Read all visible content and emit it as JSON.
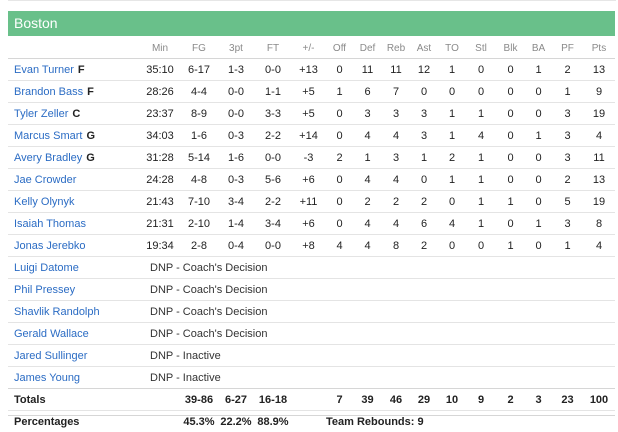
{
  "team_name": "Boston",
  "columns": [
    "Min",
    "FG",
    "3pt",
    "FT",
    "+/-",
    "Off",
    "Def",
    "Reb",
    "Ast",
    "TO",
    "Stl",
    "Blk",
    "BA",
    "PF",
    "Pts"
  ],
  "players": [
    {
      "name": "Evan Turner",
      "pos": "F",
      "stats": [
        "35:10",
        "6-17",
        "1-3",
        "0-0",
        "+13",
        "0",
        "11",
        "11",
        "12",
        "1",
        "0",
        "0",
        "1",
        "2",
        "13"
      ]
    },
    {
      "name": "Brandon Bass",
      "pos": "F",
      "stats": [
        "28:26",
        "4-4",
        "0-0",
        "1-1",
        "+5",
        "1",
        "6",
        "7",
        "0",
        "0",
        "0",
        "0",
        "0",
        "1",
        "9"
      ]
    },
    {
      "name": "Tyler Zeller",
      "pos": "C",
      "stats": [
        "23:37",
        "8-9",
        "0-0",
        "3-3",
        "+5",
        "0",
        "3",
        "3",
        "3",
        "1",
        "1",
        "0",
        "0",
        "3",
        "19"
      ]
    },
    {
      "name": "Marcus Smart",
      "pos": "G",
      "stats": [
        "34:03",
        "1-6",
        "0-3",
        "2-2",
        "+14",
        "0",
        "4",
        "4",
        "3",
        "1",
        "4",
        "0",
        "1",
        "3",
        "4"
      ]
    },
    {
      "name": "Avery Bradley",
      "pos": "G",
      "stats": [
        "31:28",
        "5-14",
        "1-6",
        "0-0",
        "-3",
        "2",
        "1",
        "3",
        "1",
        "2",
        "1",
        "0",
        "0",
        "3",
        "11"
      ]
    },
    {
      "name": "Jae Crowder",
      "pos": "",
      "stats": [
        "24:28",
        "4-8",
        "0-3",
        "5-6",
        "+6",
        "0",
        "4",
        "4",
        "0",
        "1",
        "1",
        "0",
        "0",
        "2",
        "13"
      ]
    },
    {
      "name": "Kelly Olynyk",
      "pos": "",
      "stats": [
        "21:43",
        "7-10",
        "3-4",
        "2-2",
        "+11",
        "0",
        "2",
        "2",
        "2",
        "0",
        "1",
        "1",
        "0",
        "5",
        "19"
      ]
    },
    {
      "name": "Isaiah Thomas",
      "pos": "",
      "stats": [
        "21:31",
        "2-10",
        "1-4",
        "3-4",
        "+6",
        "0",
        "4",
        "4",
        "6",
        "4",
        "1",
        "0",
        "1",
        "3",
        "8"
      ]
    },
    {
      "name": "Jonas Jerebko",
      "pos": "",
      "stats": [
        "19:34",
        "2-8",
        "0-4",
        "0-0",
        "+8",
        "4",
        "4",
        "8",
        "2",
        "0",
        "0",
        "1",
        "0",
        "1",
        "4"
      ]
    }
  ],
  "dnp": [
    {
      "name": "Luigi Datome",
      "status": "DNP - Coach's Decision"
    },
    {
      "name": "Phil Pressey",
      "status": "DNP - Coach's Decision"
    },
    {
      "name": "Shavlik Randolph",
      "status": "DNP - Coach's Decision"
    },
    {
      "name": "Gerald Wallace",
      "status": "DNP - Coach's Decision"
    },
    {
      "name": "Jared Sullinger",
      "status": "DNP - Inactive"
    },
    {
      "name": "James Young",
      "status": "DNP - Inactive"
    }
  ],
  "totals": {
    "label": "Totals",
    "stats": [
      "",
      "39-86",
      "6-27",
      "16-18",
      "",
      "7",
      "39",
      "46",
      "29",
      "10",
      "9",
      "2",
      "3",
      "23",
      "100"
    ]
  },
  "percentages": {
    "label": "Percentages",
    "fg": "45.3%",
    "three": "22.2%",
    "ft": "88.9%",
    "team_rebounds": "Team Rebounds: 9"
  }
}
